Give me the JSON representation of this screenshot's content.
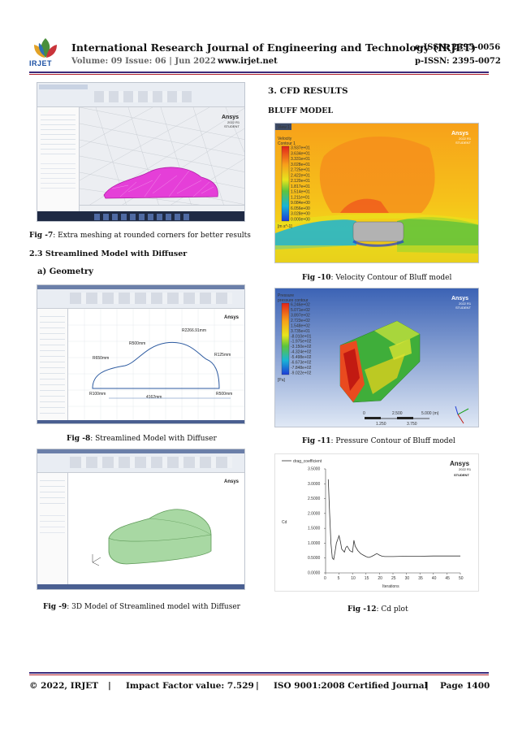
{
  "header": {
    "logo_text": "IRJET",
    "journal_title": "International Research Journal of Engineering and Technology (IRJET)",
    "e_issn": "e-ISSN: 2395-0056",
    "volume": "Volume: 09 Issue: 06 | Jun 2022",
    "website": "www.irjet.net",
    "p_issn": "p-ISSN: 2395-0072"
  },
  "left": {
    "fig7_caption_label": "Fig -7",
    "fig7_caption_text": ": Extra meshing at rounded corners for better results",
    "section_2_3": "2.3 Streamlined Model with Diffuser",
    "subsection_a": "a)    Geometry",
    "fig8_caption_label": "Fig -8",
    "fig8_caption_text": ": Streamlined Model with Diffuser",
    "fig9_caption_label": "Fig -9",
    "fig9_caption_text": ": 3D Model of Streamlined model with Diffuser"
  },
  "right": {
    "section_3": "3. CFD RESULTS",
    "bluff_model": "BLUFF MODEL",
    "fig10_caption_label": "Fig -10",
    "fig10_caption_text": ": Velocity Contour of Bluff model",
    "fig11_caption_label": "Fig -11",
    "fig11_caption_text": ": Pressure Contour of Bluff model",
    "fig12_caption_label": "Fig -12",
    "fig12_caption_text": ": Cd plot"
  },
  "figures": {
    "ansys_brand": "Ansys",
    "ansys_version": "2022 R1",
    "ansys_student": "STUDENT",
    "geometry_dims": {
      "d1": "R2266.91mm",
      "d2": "R500mm",
      "d3": "R650mm",
      "d4": "R125mm",
      "d5": "R100mm",
      "d6": "4162mm",
      "d7": "R500mm"
    },
    "velocity_legend": {
      "title1": "Velocity",
      "title2": "Contour 1",
      "values": [
        "3.937e+01",
        "3.634e+01",
        "3.331e+01",
        "3.028e+01",
        "2.725e+01",
        "2.422e+01",
        "2.120e+01",
        "1.817e+01",
        "1.514e+01",
        "1.211e+01",
        "9.084e+00",
        "6.056e+00",
        "3.028e+00",
        "0.000e+00"
      ],
      "unit": "[m s^-1]",
      "view_tab": "View 1"
    },
    "pressure_legend": {
      "title1": "Pressure",
      "title2": "pressure contour",
      "values": [
        "6.246e+02",
        "5.071e+02",
        "3.897e+02",
        "2.723e+02",
        "1.548e+02",
        "3.735e+01",
        "-8.010e+01",
        "-1.975e+02",
        "-3.150e+02",
        "-4.324e+02",
        "-5.498e+02",
        "-6.673e+02",
        "-7.848e+02",
        "-9.022e+02"
      ],
      "unit": "[Pa]",
      "scale_ticks": [
        "0",
        "2.500",
        "5.000 (m)"
      ],
      "scale_ticks_minor": [
        "1.250",
        "3.750"
      ]
    }
  },
  "chart_data": {
    "type": "line",
    "title": "",
    "legend": [
      "drag_coefficient"
    ],
    "xlabel": "Iterations",
    "ylabel": "Cd",
    "xlim": [
      0,
      50
    ],
    "ylim": [
      0,
      3.5
    ],
    "x_ticks": [
      "0",
      "5",
      "10",
      "15",
      "20",
      "25",
      "30",
      "35",
      "40",
      "45",
      "50"
    ],
    "y_ticks": [
      "0.0000",
      "0.5000",
      "1.0000",
      "1.5000",
      "2.0000",
      "2.5000",
      "3.0000",
      "3.5000"
    ],
    "series": [
      {
        "name": "drag_coefficient",
        "x": [
          1,
          1.5,
          2,
          2.5,
          3,
          3.5,
          4,
          5,
          5.5,
          6,
          7,
          7.5,
          8,
          9,
          10,
          10.5,
          11,
          12,
          13,
          14,
          15,
          16,
          17,
          18,
          19,
          20,
          21,
          22,
          23,
          25,
          30,
          35,
          40,
          45,
          50
        ],
        "y": [
          3.15,
          2.0,
          1.0,
          0.5,
          0.45,
          0.7,
          1.0,
          1.25,
          1.05,
          0.8,
          0.7,
          0.85,
          0.9,
          0.75,
          0.7,
          1.1,
          0.9,
          0.75,
          0.65,
          0.6,
          0.55,
          0.52,
          0.55,
          0.6,
          0.65,
          0.6,
          0.56,
          0.55,
          0.55,
          0.55,
          0.56,
          0.56,
          0.57,
          0.57,
          0.57
        ]
      }
    ]
  },
  "footer": {
    "copyright": "© 2022, IRJET",
    "sep1": "|",
    "impact": "Impact Factor value: 7.529",
    "sep2": "|",
    "iso": "ISO 9001:2008 Certified Journal",
    "sep3": "|",
    "page": "Page 1400"
  },
  "colors": {
    "rule_primary": "#3b2a7a",
    "rule_secondary": "#b01e2a",
    "irjet_blue": "#1a4fa3"
  }
}
